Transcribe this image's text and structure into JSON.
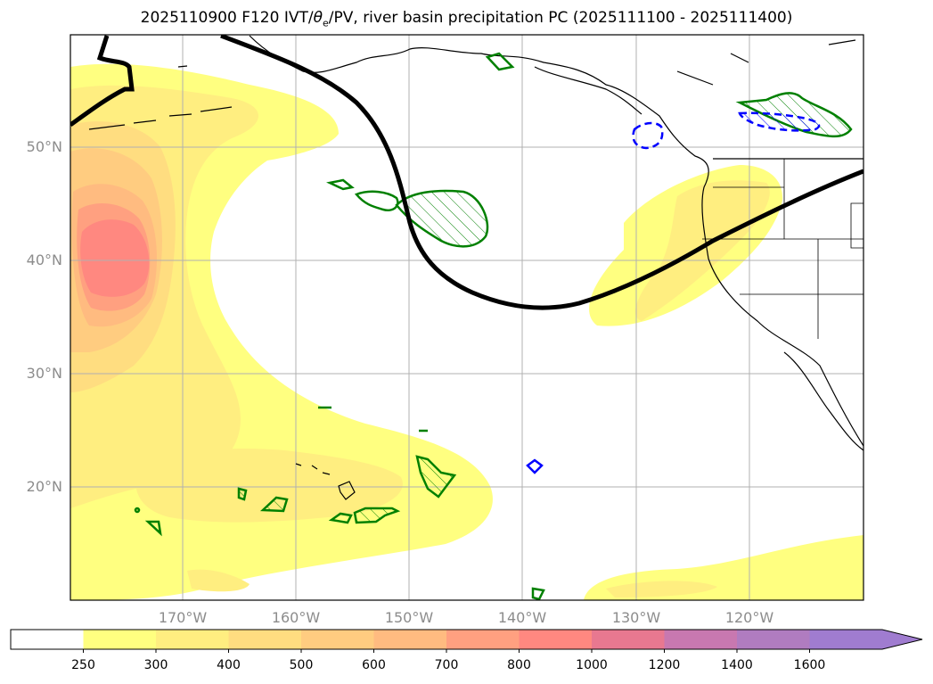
{
  "title": {
    "prefix": "2025110900 F120 IVT/",
    "theta": "θ",
    "theta_sub": "e",
    "suffix": "/PV, river basin precipitation PC (2025111100 - 2025111400)"
  },
  "map": {
    "lat_labels": [
      "50°N",
      "40°N",
      "30°N",
      "20°N"
    ],
    "lon_labels": [
      "170°W",
      "160°W",
      "150°W",
      "140°W",
      "130°W",
      "120°W"
    ],
    "colors": {
      "land_outline": "#000000",
      "grid": "#b0b0b0",
      "pv_contour": "#000000",
      "precip_positive": "#008000",
      "precip_negative": "#0000ff",
      "frame": "#000000"
    }
  },
  "colorbar": {
    "ticks": [
      "250",
      "300",
      "400",
      "500",
      "600",
      "700",
      "800",
      "1000",
      "1200",
      "1400",
      "1600"
    ],
    "colors": [
      "#ffffff",
      "#ffff80",
      "#ffee80",
      "#ffdd80",
      "#ffcc80",
      "#ffbb80",
      "#ffa080",
      "#ff8880",
      "#e87890",
      "#c878b0",
      "#b07cc0",
      "#a07cd0"
    ],
    "extend": "max"
  }
}
